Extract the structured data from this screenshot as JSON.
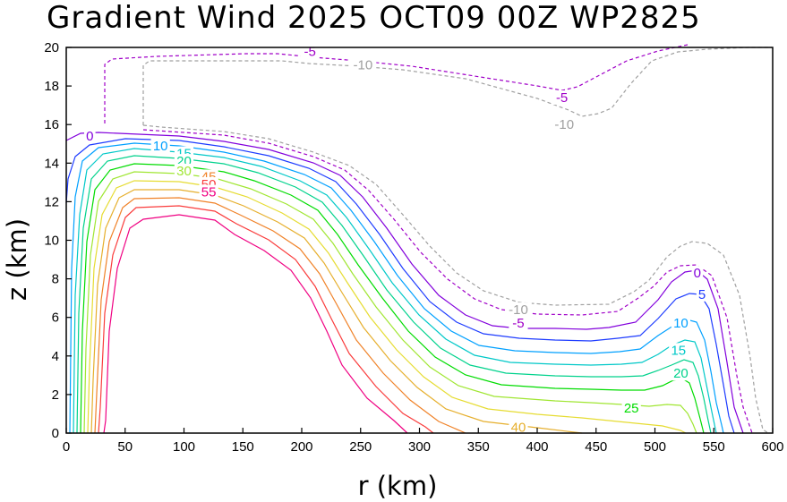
{
  "chart_data": {
    "type": "contour",
    "title": "Gradient Wind 2025 OCT09 00Z  WP2825",
    "xlabel": "r (km)",
    "ylabel": "z (km)",
    "xlim": [
      0,
      600
    ],
    "ylim": [
      0,
      20
    ],
    "xticks": [
      "0",
      "50",
      "100",
      "150",
      "200",
      "250",
      "300",
      "350",
      "400",
      "450",
      "500",
      "550",
      "600"
    ],
    "yticks": [
      "0",
      "2",
      "4",
      "6",
      "8",
      "10",
      "12",
      "14",
      "16",
      "18",
      "20"
    ],
    "colors": {
      "neg10": "#a0a0a0",
      "neg5": "#a000c8",
      "c0": "#8200dc",
      "c5": "#1e3cff",
      "c10": "#00a0ff",
      "c15": "#00c8c8",
      "c20": "#00d28c",
      "c25": "#00dc00",
      "c30": "#a0e632",
      "c35": "#e6dc32",
      "c40": "#e6af2d",
      "c45": "#f08228",
      "c50": "#fa3c3c",
      "c55": "#f00082"
    },
    "labels": [
      {
        "text": "-5",
        "x": 207,
        "y": 19.8,
        "color": "#a000c8"
      },
      {
        "text": "-10",
        "x": 252,
        "y": 19.1,
        "color": "#a0a0a0"
      },
      {
        "text": "-5",
        "x": 421,
        "y": 17.4,
        "color": "#a000c8"
      },
      {
        "text": "-10",
        "x": 423,
        "y": 16.0,
        "color": "#a0a0a0"
      },
      {
        "text": "0",
        "x": 20,
        "y": 15.4,
        "color": "#8200dc"
      },
      {
        "text": "10",
        "x": 80,
        "y": 14.9,
        "color": "#00a0ff"
      },
      {
        "text": "15",
        "x": 100,
        "y": 14.5,
        "color": "#00c8c8"
      },
      {
        "text": "20",
        "x": 100,
        "y": 14.1,
        "color": "#00d28c"
      },
      {
        "text": "30",
        "x": 100,
        "y": 13.6,
        "color": "#a0e632"
      },
      {
        "text": "45",
        "x": 121,
        "y": 13.3,
        "color": "#f08228"
      },
      {
        "text": "50",
        "x": 121,
        "y": 12.9,
        "color": "#fa3c3c"
      },
      {
        "text": "55",
        "x": 121,
        "y": 12.5,
        "color": "#f00082"
      },
      {
        "text": "-10",
        "x": 384,
        "y": 6.4,
        "color": "#a0a0a0"
      },
      {
        "text": "-5",
        "x": 384,
        "y": 5.7,
        "color": "#a000c8"
      },
      {
        "text": "0",
        "x": 536,
        "y": 8.3,
        "color": "#8200dc"
      },
      {
        "text": "5",
        "x": 540,
        "y": 7.2,
        "color": "#1e3cff"
      },
      {
        "text": "10",
        "x": 522,
        "y": 5.7,
        "color": "#00a0ff"
      },
      {
        "text": "15",
        "x": 520,
        "y": 4.3,
        "color": "#00c8c8"
      },
      {
        "text": "20",
        "x": 522,
        "y": 3.1,
        "color": "#00d28c"
      },
      {
        "text": "25",
        "x": 480,
        "y": 1.3,
        "color": "#00dc00"
      },
      {
        "text": "40",
        "x": 384,
        "y": 0.3,
        "color": "#e6af2d"
      }
    ]
  }
}
